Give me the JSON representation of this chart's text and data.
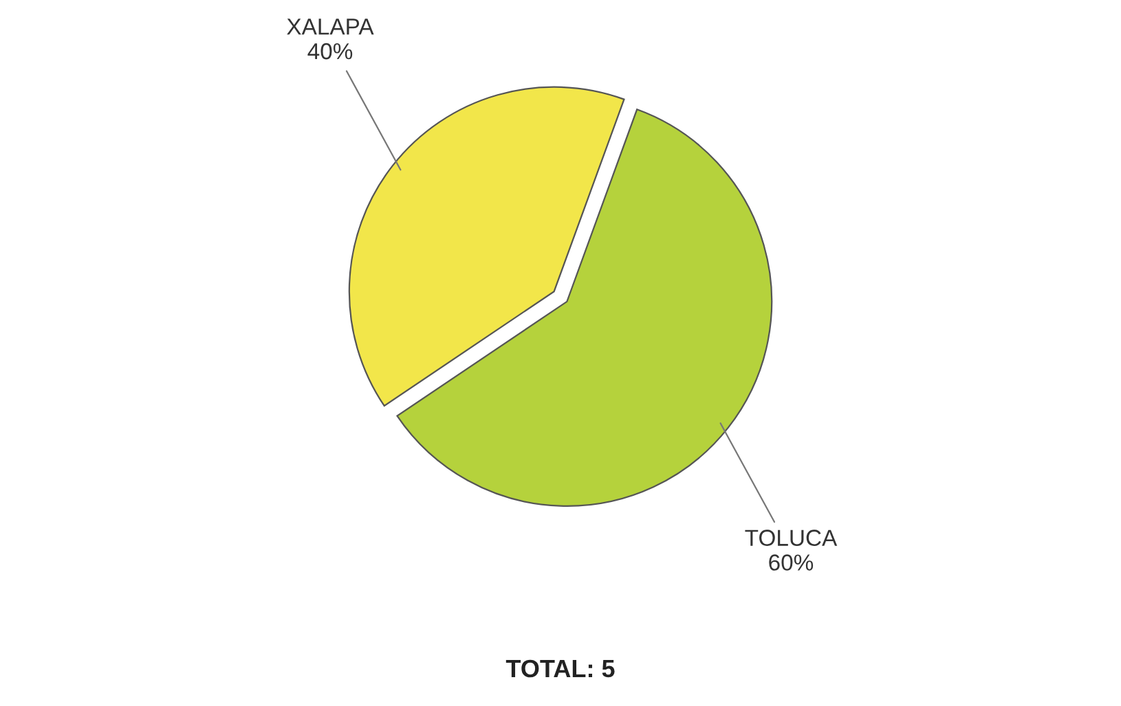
{
  "chart_data": {
    "type": "pie",
    "categories": [
      "XALAPA",
      "TOLUCA"
    ],
    "values": [
      40,
      60
    ],
    "value_labels": [
      "40%",
      "60%"
    ],
    "colors": [
      "#f2e64a",
      "#b5d23c"
    ],
    "annotations": [
      "TOTAL: 5"
    ]
  }
}
